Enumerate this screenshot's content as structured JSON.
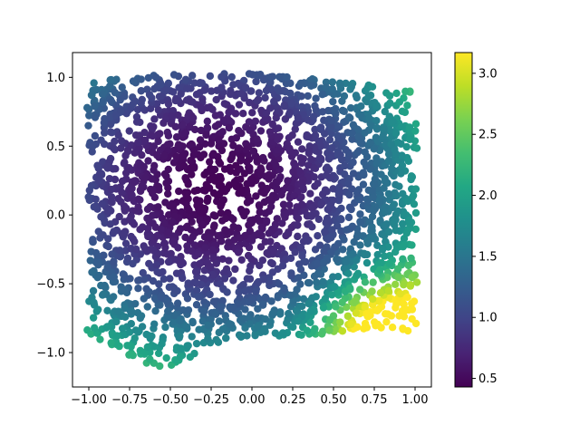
{
  "chart_data": {
    "type": "scatter",
    "title": "",
    "xlabel": "",
    "ylabel": "",
    "xlim": [
      -1.1,
      1.1
    ],
    "ylim": [
      -1.25,
      1.18
    ],
    "x_ticks": [
      -1.0,
      -0.75,
      -0.5,
      -0.25,
      0.0,
      0.25,
      0.5,
      0.75,
      1.0
    ],
    "x_tick_labels": [
      "−1.00",
      "−0.75",
      "−0.50",
      "−0.25",
      "0.00",
      "0.25",
      "0.50",
      "0.75",
      "1.00"
    ],
    "y_ticks": [
      -1.0,
      -0.5,
      0.0,
      0.5,
      1.0
    ],
    "y_tick_labels": [
      "−1.0",
      "−0.5",
      "0.0",
      "0.5",
      "1.0"
    ],
    "grid": false,
    "colormap": "viridis",
    "colorbar": {
      "range": [
        0.43,
        3.17
      ],
      "ticks": [
        0.5,
        1.0,
        1.5,
        2.0,
        2.5,
        3.0
      ],
      "tick_labels": [
        "0.5",
        "1.0",
        "1.5",
        "2.0",
        "2.5",
        "3.0"
      ]
    },
    "color_field": {
      "description": "color value is a smooth function of (x, y): minimum near the upper-left center, maximum near the lower-right corner",
      "minimum": {
        "x": -0.22,
        "y": 0.22,
        "value": 0.45
      },
      "maximum": {
        "x": 0.8,
        "y": -0.8,
        "value": 3.15
      }
    },
    "point_region": {
      "x_range": [
        -1.0,
        1.0
      ],
      "y_range": [
        -1.13,
        1.05
      ]
    },
    "n_points": 2500
  }
}
